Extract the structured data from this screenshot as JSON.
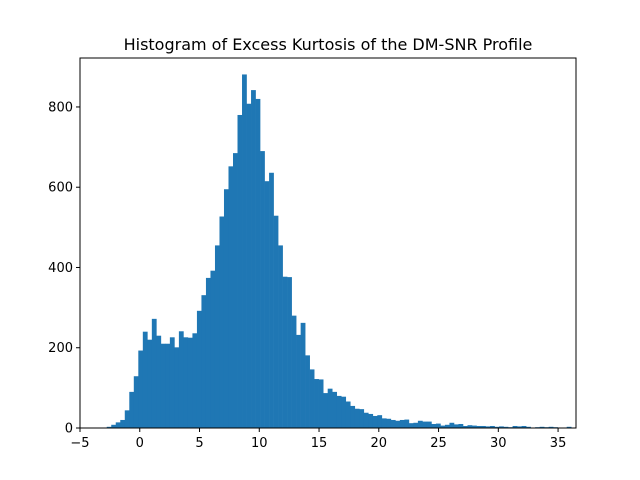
{
  "chart_data": {
    "type": "bar",
    "title": "Histogram of Excess Kurtosis of the DM-SNR Profile",
    "xlabel": "",
    "ylabel": "",
    "xlim": [
      -5.0,
      36.5
    ],
    "ylim": [
      0,
      922
    ],
    "xticks": [
      -5,
      0,
      5,
      10,
      15,
      20,
      25,
      30,
      35
    ],
    "yticks": [
      0,
      200,
      400,
      600,
      800
    ],
    "bar_color": "#1f77b4",
    "bin_start": -3.14,
    "bin_width": 0.3773,
    "values": [
      1,
      3,
      8,
      14,
      20,
      44,
      90,
      129,
      193,
      240,
      220,
      272,
      230,
      210,
      210,
      226,
      201,
      241,
      226,
      225,
      236,
      292,
      331,
      374,
      392,
      455,
      527,
      595,
      652,
      685,
      780,
      881,
      808,
      842,
      820,
      690,
      615,
      636,
      529,
      455,
      377,
      376,
      280,
      232,
      262,
      181,
      146,
      122,
      121,
      87,
      98,
      90,
      80,
      78,
      66,
      55,
      48,
      47,
      38,
      35,
      30,
      32,
      24,
      23,
      20,
      18,
      20,
      21,
      12,
      13,
      18,
      16,
      16,
      10,
      11,
      6,
      8,
      13,
      9,
      10,
      5,
      7,
      6,
      5,
      5,
      4,
      5,
      3,
      4,
      3,
      2,
      5,
      4,
      5,
      3,
      1,
      2,
      3,
      2,
      3,
      2,
      1,
      1,
      3
    ]
  }
}
